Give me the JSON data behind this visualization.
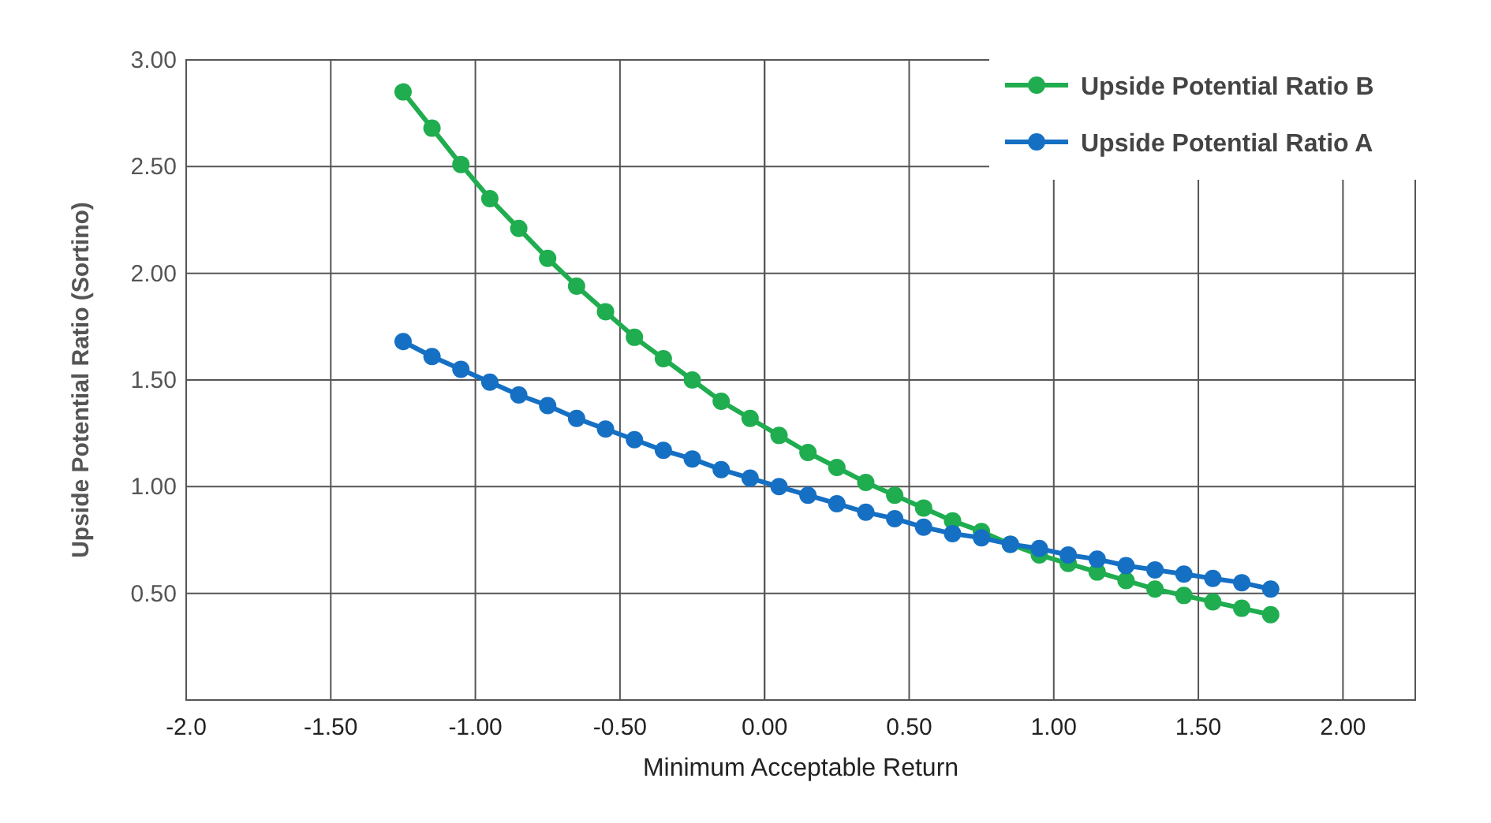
{
  "chart_data": {
    "type": "line",
    "xlabel": "Minimum Acceptable Return",
    "ylabel": "Upside Potential Ratio (Sortino)",
    "x": [
      -1.25,
      -1.15,
      -1.05,
      -0.95,
      -0.85,
      -0.75,
      -0.65,
      -0.55,
      -0.45,
      -0.35,
      -0.25,
      -0.15,
      -0.05,
      0.05,
      0.15,
      0.25,
      0.35,
      0.45,
      0.55,
      0.65,
      0.75,
      0.85,
      0.95,
      1.05,
      1.15,
      1.25,
      1.35,
      1.45,
      1.55,
      1.65,
      1.75
    ],
    "series": [
      {
        "name": "Upside Potential Ratio B",
        "color": "#1fad4f",
        "values": [
          2.85,
          2.68,
          2.51,
          2.35,
          2.21,
          2.07,
          1.94,
          1.82,
          1.7,
          1.6,
          1.5,
          1.4,
          1.32,
          1.24,
          1.16,
          1.09,
          1.02,
          0.96,
          0.9,
          0.84,
          0.79,
          0.73,
          0.68,
          0.64,
          0.6,
          0.56,
          0.52,
          0.49,
          0.46,
          0.43,
          0.4
        ]
      },
      {
        "name": "Upside Potential Ratio A",
        "color": "#1570c4",
        "values": [
          1.68,
          1.61,
          1.55,
          1.49,
          1.43,
          1.38,
          1.32,
          1.27,
          1.22,
          1.17,
          1.13,
          1.08,
          1.04,
          1.0,
          0.96,
          0.92,
          0.88,
          0.85,
          0.81,
          0.78,
          0.76,
          0.73,
          0.71,
          0.68,
          0.66,
          0.63,
          0.61,
          0.59,
          0.57,
          0.55,
          0.52
        ]
      }
    ],
    "xlim": [
      -2.0,
      2.25
    ],
    "xticks": [
      {
        "value": -2,
        "label": "-2.0"
      },
      {
        "value": -1.5,
        "label": "-1.50"
      },
      {
        "value": -1,
        "label": "-1.00"
      },
      {
        "value": -0.5,
        "label": "-0.50"
      },
      {
        "value": 0,
        "label": "0.00"
      },
      {
        "value": 0.5,
        "label": "0.50"
      },
      {
        "value": 1,
        "label": "1.00"
      },
      {
        "value": 1.5,
        "label": "1.50"
      },
      {
        "value": 2,
        "label": "2.00"
      }
    ],
    "ylim": [
      0,
      3
    ],
    "yticks": [
      {
        "value": 0.5,
        "label": "0.50"
      },
      {
        "value": 1,
        "label": "1.00"
      },
      {
        "value": 1.5,
        "label": "1.50"
      },
      {
        "value": 2,
        "label": "2.00"
      },
      {
        "value": 2.5,
        "label": "2.50"
      },
      {
        "value": 3,
        "label": "3.00"
      }
    ],
    "grid": true,
    "legend": "top right",
    "marker": "circle",
    "line_style": "solid"
  }
}
